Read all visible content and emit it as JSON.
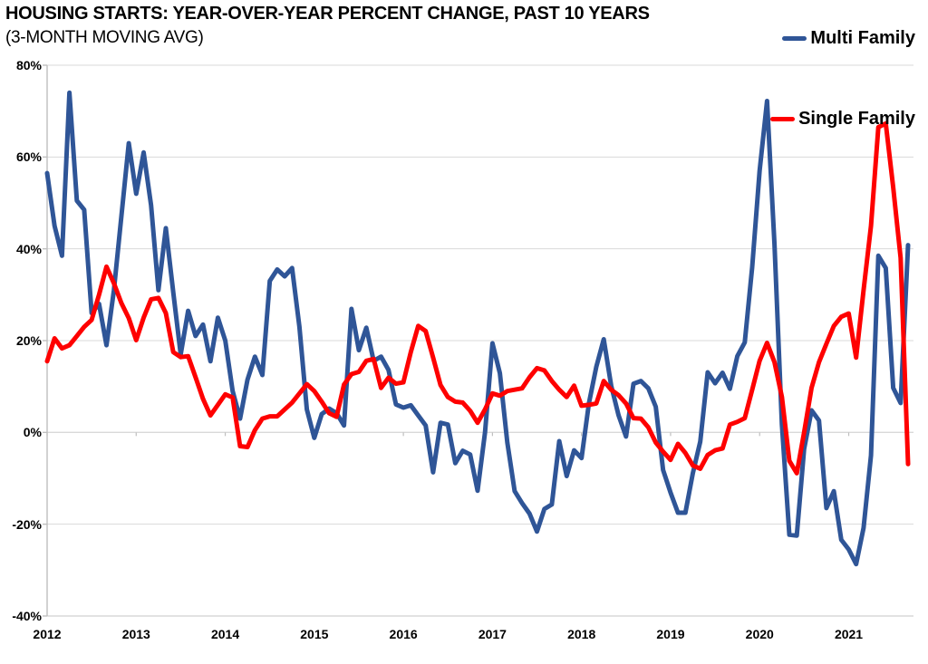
{
  "title": "HOUSING STARTS: YEAR-OVER-YEAR PERCENT CHANGE, PAST 10 YEARS",
  "subtitle": "(3-MONTH MOVING AVG)",
  "legend": {
    "multi_family": "Multi Family",
    "single_family": "Single Family"
  },
  "colors": {
    "multi_family": "#2f5597",
    "single_family": "#fe0000",
    "gridline": "#d9d9d9",
    "axis": "#bfbfbf",
    "text": "#000000"
  },
  "chart_data": {
    "type": "line",
    "title": "HOUSING STARTS: YEAR-OVER-YEAR PERCENT CHANGE, PAST 10 YEARS",
    "subtitle": "(3-MONTH MOVING AVG)",
    "x_start_month": "2012-01",
    "x_end_month": "2021-09",
    "months_per_point": 1,
    "x_tick_labels": [
      "2012",
      "2013",
      "2014",
      "2015",
      "2016",
      "2017",
      "2018",
      "2019",
      "2020",
      "2021"
    ],
    "y_tick_labels": [
      "80%",
      "60%",
      "40%",
      "20%",
      "0%",
      "-20%",
      "-40%"
    ],
    "y_tick_values": [
      80,
      60,
      40,
      20,
      0,
      -20,
      -40
    ],
    "ylim": [
      -40,
      80
    ],
    "grid": true,
    "legend_position": "top-right",
    "series": [
      {
        "name": "Multi Family",
        "color": "#2f5597",
        "values": [
          56.5,
          45,
          38.5,
          74,
          50.5,
          48.5,
          26,
          28,
          19,
          31,
          47,
          63,
          52,
          61,
          49.5,
          31,
          44.5,
          30.5,
          17,
          26.5,
          21,
          23.5,
          15.5,
          25,
          20,
          9,
          3,
          11.5,
          16.5,
          12.5,
          33,
          35.5,
          34,
          35.8,
          23,
          5,
          -1.2,
          4,
          5.2,
          4.2,
          1.5,
          26.9,
          17.9,
          22.8,
          15.6,
          16.5,
          13.6,
          6.1,
          5.4,
          5.9,
          3.7,
          1.5,
          -8.7,
          2.1,
          1.7,
          -6.7,
          -4,
          -4.8,
          -12.7,
          0,
          19.4,
          12.9,
          -2.2,
          -12.8,
          -15.4,
          -17.7,
          -21.6,
          -16.7,
          -15.7,
          -1.9,
          -9.5,
          -3.9,
          -5.6,
          6.3,
          14.3,
          20.3,
          10.2,
          3.7,
          -0.9,
          10.6,
          11.2,
          9.6,
          5.6,
          -8.2,
          -13.1,
          -17.5,
          -17.5,
          -8.9,
          -2,
          13.1,
          10.7,
          13,
          9.5,
          16.6,
          19.6,
          36,
          57,
          72.2,
          41,
          1.7,
          -22.3,
          -22.5,
          -3.6,
          4.8,
          2.6,
          -16.5,
          -12.8,
          -23.4,
          -25.5,
          -28.7,
          -20.8,
          -5,
          38.5,
          35.8,
          9.7,
          6.4,
          40.8
        ]
      },
      {
        "name": "Single Family",
        "color": "#fe0000",
        "values": [
          15.5,
          20.5,
          18.3,
          19,
          21,
          23,
          24.5,
          30,
          36.1,
          32.5,
          28.2,
          24.9,
          20.1,
          25,
          29,
          29.3,
          26,
          17.5,
          16.4,
          16.6,
          12,
          7.3,
          3.7,
          6,
          8.3,
          7.6,
          -3,
          -3.2,
          0.5,
          3,
          3.5,
          3.5,
          5,
          6.5,
          8.5,
          10.5,
          9,
          6.7,
          4.2,
          3.4,
          10.4,
          12.7,
          13.2,
          15.6,
          16,
          9.7,
          11.9,
          10.6,
          10.9,
          17.5,
          23.2,
          22.1,
          16.3,
          10.3,
          7.7,
          6.7,
          6.5,
          4.7,
          2.1,
          5,
          8.5,
          8,
          9,
          9.3,
          9.6,
          12,
          14,
          13.5,
          11.2,
          9.3,
          7.7,
          10.2,
          5.8,
          6,
          6.3,
          11.2,
          9.3,
          8.1,
          6.3,
          3.1,
          3,
          1.1,
          -2.2,
          -4.2,
          -6,
          -2.5,
          -4.5,
          -7.2,
          -7.9,
          -4.9,
          -3.9,
          -3.5,
          1.7,
          2.3,
          3.1,
          9.3,
          15.6,
          19.5,
          15.3,
          7.7,
          -6.2,
          -8.9,
          0,
          9.7,
          15.3,
          19.3,
          23.2,
          25.2,
          25.9,
          16.3,
          31,
          45,
          66.5,
          67.3,
          53.4,
          38,
          -6.9
        ]
      }
    ]
  }
}
